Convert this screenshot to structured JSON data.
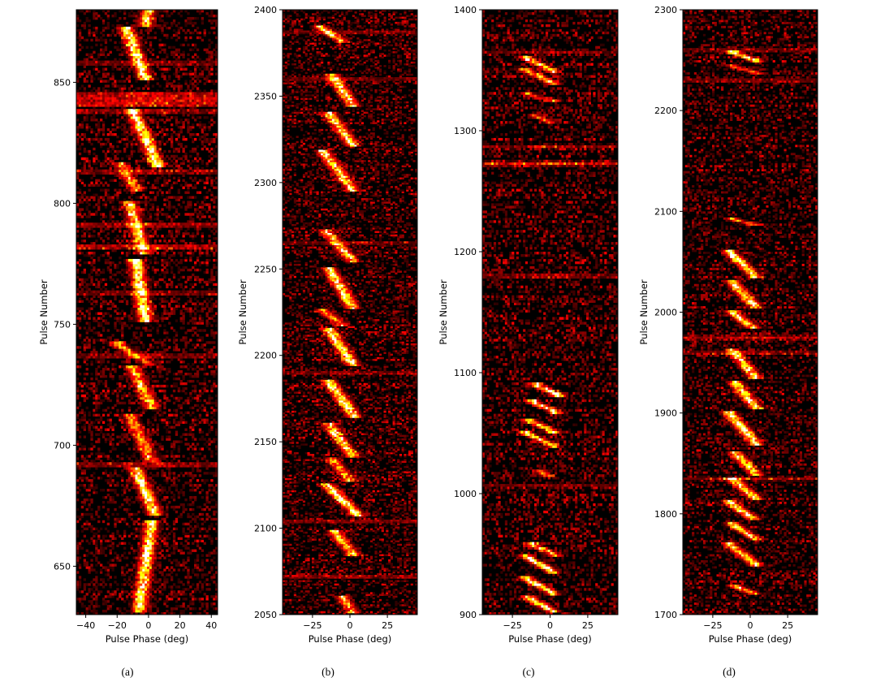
{
  "chart_data": [
    {
      "type": "heatmap",
      "caption": "(a)",
      "xlabel": "Pulse Phase (deg)",
      "ylabel": "Pulse Number",
      "xlim": [
        -46,
        44
      ],
      "ylim": [
        630,
        880
      ],
      "xticks": [
        -40,
        -20,
        0,
        20,
        40
      ],
      "yticks": [
        650,
        700,
        750,
        800,
        850
      ],
      "colormap": "black-red-yellow-white",
      "intensity_range": [
        0,
        1
      ],
      "drift_bands": [
        {
          "p0": 632,
          "p1": 668,
          "x0": -6,
          "x1": 2,
          "amp": 0.95
        },
        {
          "p0": 672,
          "p1": 690,
          "x0": 4,
          "x1": -8,
          "amp": 0.95
        },
        {
          "p0": 694,
          "p1": 712,
          "x0": 2,
          "x1": -12,
          "amp": 0.7
        },
        {
          "p0": 716,
          "p1": 732,
          "x0": 2,
          "x1": -10,
          "amp": 0.8
        },
        {
          "p0": 734,
          "p1": 742,
          "x0": 0,
          "x1": -20,
          "amp": 0.65
        },
        {
          "p0": 752,
          "p1": 776,
          "x0": -2,
          "x1": -8,
          "amp": 1.0
        },
        {
          "p0": 780,
          "p1": 800,
          "x0": -3,
          "x1": -12,
          "amp": 0.85
        },
        {
          "p0": 806,
          "p1": 816,
          "x0": -8,
          "x1": -18,
          "amp": 0.65
        },
        {
          "p0": 816,
          "p1": 838,
          "x0": 6,
          "x1": -10,
          "amp": 1.0
        },
        {
          "p0": 852,
          "p1": 872,
          "x0": -2,
          "x1": -14,
          "amp": 0.95
        },
        {
          "p0": 874,
          "p1": 880,
          "x0": -2,
          "x1": 0,
          "amp": 0.9
        }
      ],
      "bright_rows": [
        {
          "pulse": 843,
          "amp": 0.95
        },
        {
          "pulse": 841,
          "amp": 0.85
        },
        {
          "pulse": 845,
          "amp": 0.8
        },
        {
          "pulse": 838,
          "amp": 0.5
        },
        {
          "pulse": 782,
          "amp": 0.75
        },
        {
          "pulse": 791,
          "amp": 0.55
        },
        {
          "pulse": 692,
          "amp": 0.55
        },
        {
          "pulse": 813,
          "amp": 0.45
        },
        {
          "pulse": 763,
          "amp": 0.45
        },
        {
          "pulse": 737,
          "amp": 0.45
        },
        {
          "pulse": 858,
          "amp": 0.45
        }
      ]
    },
    {
      "type": "heatmap",
      "caption": "(b)",
      "xlabel": "Pulse Phase (deg)",
      "ylabel": "Pulse Number",
      "xlim": [
        -45,
        45
      ],
      "ylim": [
        2050,
        2400
      ],
      "xticks": [
        -25,
        0,
        25
      ],
      "yticks": [
        2050,
        2100,
        2150,
        2200,
        2250,
        2300,
        2350,
        2400
      ],
      "colormap": "black-red-yellow-white",
      "intensity_range": [
        0,
        1
      ],
      "drift_bands": [
        {
          "p0": 2052,
          "p1": 2060,
          "x0": 2,
          "x1": -5,
          "amp": 0.7
        },
        {
          "p0": 2085,
          "p1": 2098,
          "x0": 2,
          "x1": -10,
          "amp": 0.85
        },
        {
          "p0": 2108,
          "p1": 2125,
          "x0": 5,
          "x1": -15,
          "amp": 1.0
        },
        {
          "p0": 2128,
          "p1": 2140,
          "x0": 0,
          "x1": -12,
          "amp": 0.7
        },
        {
          "p0": 2142,
          "p1": 2160,
          "x0": 2,
          "x1": -14,
          "amp": 0.9
        },
        {
          "p0": 2165,
          "p1": 2185,
          "x0": 3,
          "x1": -14,
          "amp": 1.0
        },
        {
          "p0": 2195,
          "p1": 2215,
          "x0": 2,
          "x1": -14,
          "amp": 1.0
        },
        {
          "p0": 2218,
          "p1": 2226,
          "x0": -5,
          "x1": -18,
          "amp": 0.7
        },
        {
          "p0": 2228,
          "p1": 2250,
          "x0": 2,
          "x1": -14,
          "amp": 0.95
        },
        {
          "p0": 2255,
          "p1": 2272,
          "x0": 2,
          "x1": -16,
          "amp": 0.85
        },
        {
          "p0": 2296,
          "p1": 2318,
          "x0": 2,
          "x1": -18,
          "amp": 0.9
        },
        {
          "p0": 2322,
          "p1": 2340,
          "x0": 2,
          "x1": -14,
          "amp": 0.9
        },
        {
          "p0": 2345,
          "p1": 2362,
          "x0": 2,
          "x1": -12,
          "amp": 0.9
        },
        {
          "p0": 2382,
          "p1": 2390,
          "x0": -5,
          "x1": -20,
          "amp": 0.8
        }
      ],
      "bright_rows": [
        {
          "pulse": 2072,
          "amp": 0.55
        },
        {
          "pulse": 2104,
          "amp": 0.5
        },
        {
          "pulse": 2190,
          "amp": 0.45
        },
        {
          "pulse": 2360,
          "amp": 0.45
        },
        {
          "pulse": 2387,
          "amp": 0.45
        },
        {
          "pulse": 2265,
          "amp": 0.4
        }
      ]
    },
    {
      "type": "heatmap",
      "caption": "(c)",
      "xlabel": "Pulse Phase (deg)",
      "ylabel": "Pulse Number",
      "xlim": [
        -45,
        45
      ],
      "ylim": [
        900,
        1400
      ],
      "xticks": [
        -25,
        0,
        25
      ],
      "yticks": [
        900,
        1000,
        1100,
        1200,
        1300,
        1400
      ],
      "colormap": "black-red-yellow-white",
      "intensity_range": [
        0,
        1
      ],
      "drift_bands": [
        {
          "p0": 903,
          "p1": 914,
          "x0": 2,
          "x1": -14,
          "amp": 0.9
        },
        {
          "p0": 918,
          "p1": 930,
          "x0": 2,
          "x1": -16,
          "amp": 1.0
        },
        {
          "p0": 936,
          "p1": 948,
          "x0": 2,
          "x1": -16,
          "amp": 0.95
        },
        {
          "p0": 950,
          "p1": 958,
          "x0": 3,
          "x1": -12,
          "amp": 0.8
        },
        {
          "p0": 1015,
          "p1": 1018,
          "x0": -2,
          "x1": -6,
          "amp": 0.6
        },
        {
          "p0": 1040,
          "p1": 1050,
          "x0": 2,
          "x1": -16,
          "amp": 0.85
        },
        {
          "p0": 1052,
          "p1": 1060,
          "x0": 2,
          "x1": -14,
          "amp": 0.9
        },
        {
          "p0": 1068,
          "p1": 1076,
          "x0": 4,
          "x1": -12,
          "amp": 1.0
        },
        {
          "p0": 1082,
          "p1": 1090,
          "x0": 6,
          "x1": -10,
          "amp": 1.0
        },
        {
          "p0": 1308,
          "p1": 1312,
          "x0": 0,
          "x1": -10,
          "amp": 0.55
        },
        {
          "p0": 1325,
          "p1": 1330,
          "x0": 2,
          "x1": -15,
          "amp": 0.6
        },
        {
          "p0": 1340,
          "p1": 1350,
          "x0": 2,
          "x1": -16,
          "amp": 0.85
        },
        {
          "p0": 1350,
          "p1": 1360,
          "x0": 2,
          "x1": -16,
          "amp": 0.9
        }
      ],
      "bright_rows": [
        {
          "pulse": 1273,
          "amp": 0.65
        },
        {
          "pulse": 1180,
          "amp": 0.45
        },
        {
          "pulse": 1287,
          "amp": 0.35
        },
        {
          "pulse": 1365,
          "amp": 0.3
        },
        {
          "pulse": 1007,
          "amp": 0.3
        }
      ]
    },
    {
      "type": "heatmap",
      "caption": "(d)",
      "xlabel": "Pulse Phase (deg)",
      "ylabel": "Pulse Number",
      "xlim": [
        -45,
        45
      ],
      "ylim": [
        1700,
        2300
      ],
      "xticks": [
        -25,
        0,
        25
      ],
      "yticks": [
        1700,
        1800,
        1900,
        2000,
        2100,
        2200,
        2300
      ],
      "colormap": "black-red-yellow-white",
      "intensity_range": [
        0,
        1
      ],
      "drift_bands": [
        {
          "p0": 1722,
          "p1": 1728,
          "x0": 2,
          "x1": -10,
          "amp": 0.7
        },
        {
          "p0": 1750,
          "p1": 1770,
          "x0": 4,
          "x1": -14,
          "amp": 0.9
        },
        {
          "p0": 1775,
          "p1": 1790,
          "x0": 4,
          "x1": -12,
          "amp": 0.85
        },
        {
          "p0": 1795,
          "p1": 1812,
          "x0": 2,
          "x1": -14,
          "amp": 0.9
        },
        {
          "p0": 1815,
          "p1": 1835,
          "x0": 4,
          "x1": -12,
          "amp": 0.9
        },
        {
          "p0": 1840,
          "p1": 1860,
          "x0": 4,
          "x1": -10,
          "amp": 0.85
        },
        {
          "p0": 1870,
          "p1": 1900,
          "x0": 4,
          "x1": -14,
          "amp": 1.0
        },
        {
          "p0": 1905,
          "p1": 1930,
          "x0": 4,
          "x1": -10,
          "amp": 0.9
        },
        {
          "p0": 1935,
          "p1": 1962,
          "x0": 4,
          "x1": -12,
          "amp": 0.9
        },
        {
          "p0": 1985,
          "p1": 2000,
          "x0": 2,
          "x1": -12,
          "amp": 0.9
        },
        {
          "p0": 2005,
          "p1": 2030,
          "x0": 4,
          "x1": -12,
          "amp": 0.9
        },
        {
          "p0": 2035,
          "p1": 2060,
          "x0": 4,
          "x1": -14,
          "amp": 0.9
        },
        {
          "p0": 2088,
          "p1": 2092,
          "x0": 2,
          "x1": -12,
          "amp": 0.7
        },
        {
          "p0": 2238,
          "p1": 2244,
          "x0": 4,
          "x1": -12,
          "amp": 0.55
        },
        {
          "p0": 2250,
          "p1": 2258,
          "x0": 4,
          "x1": -12,
          "amp": 0.95
        }
      ],
      "bright_rows": [
        {
          "pulse": 1975,
          "amp": 0.55
        },
        {
          "pulse": 1960,
          "amp": 0.45
        },
        {
          "pulse": 1835,
          "amp": 0.45
        },
        {
          "pulse": 2230,
          "amp": 0.4
        },
        {
          "pulse": 2260,
          "amp": 0.35
        }
      ]
    }
  ]
}
